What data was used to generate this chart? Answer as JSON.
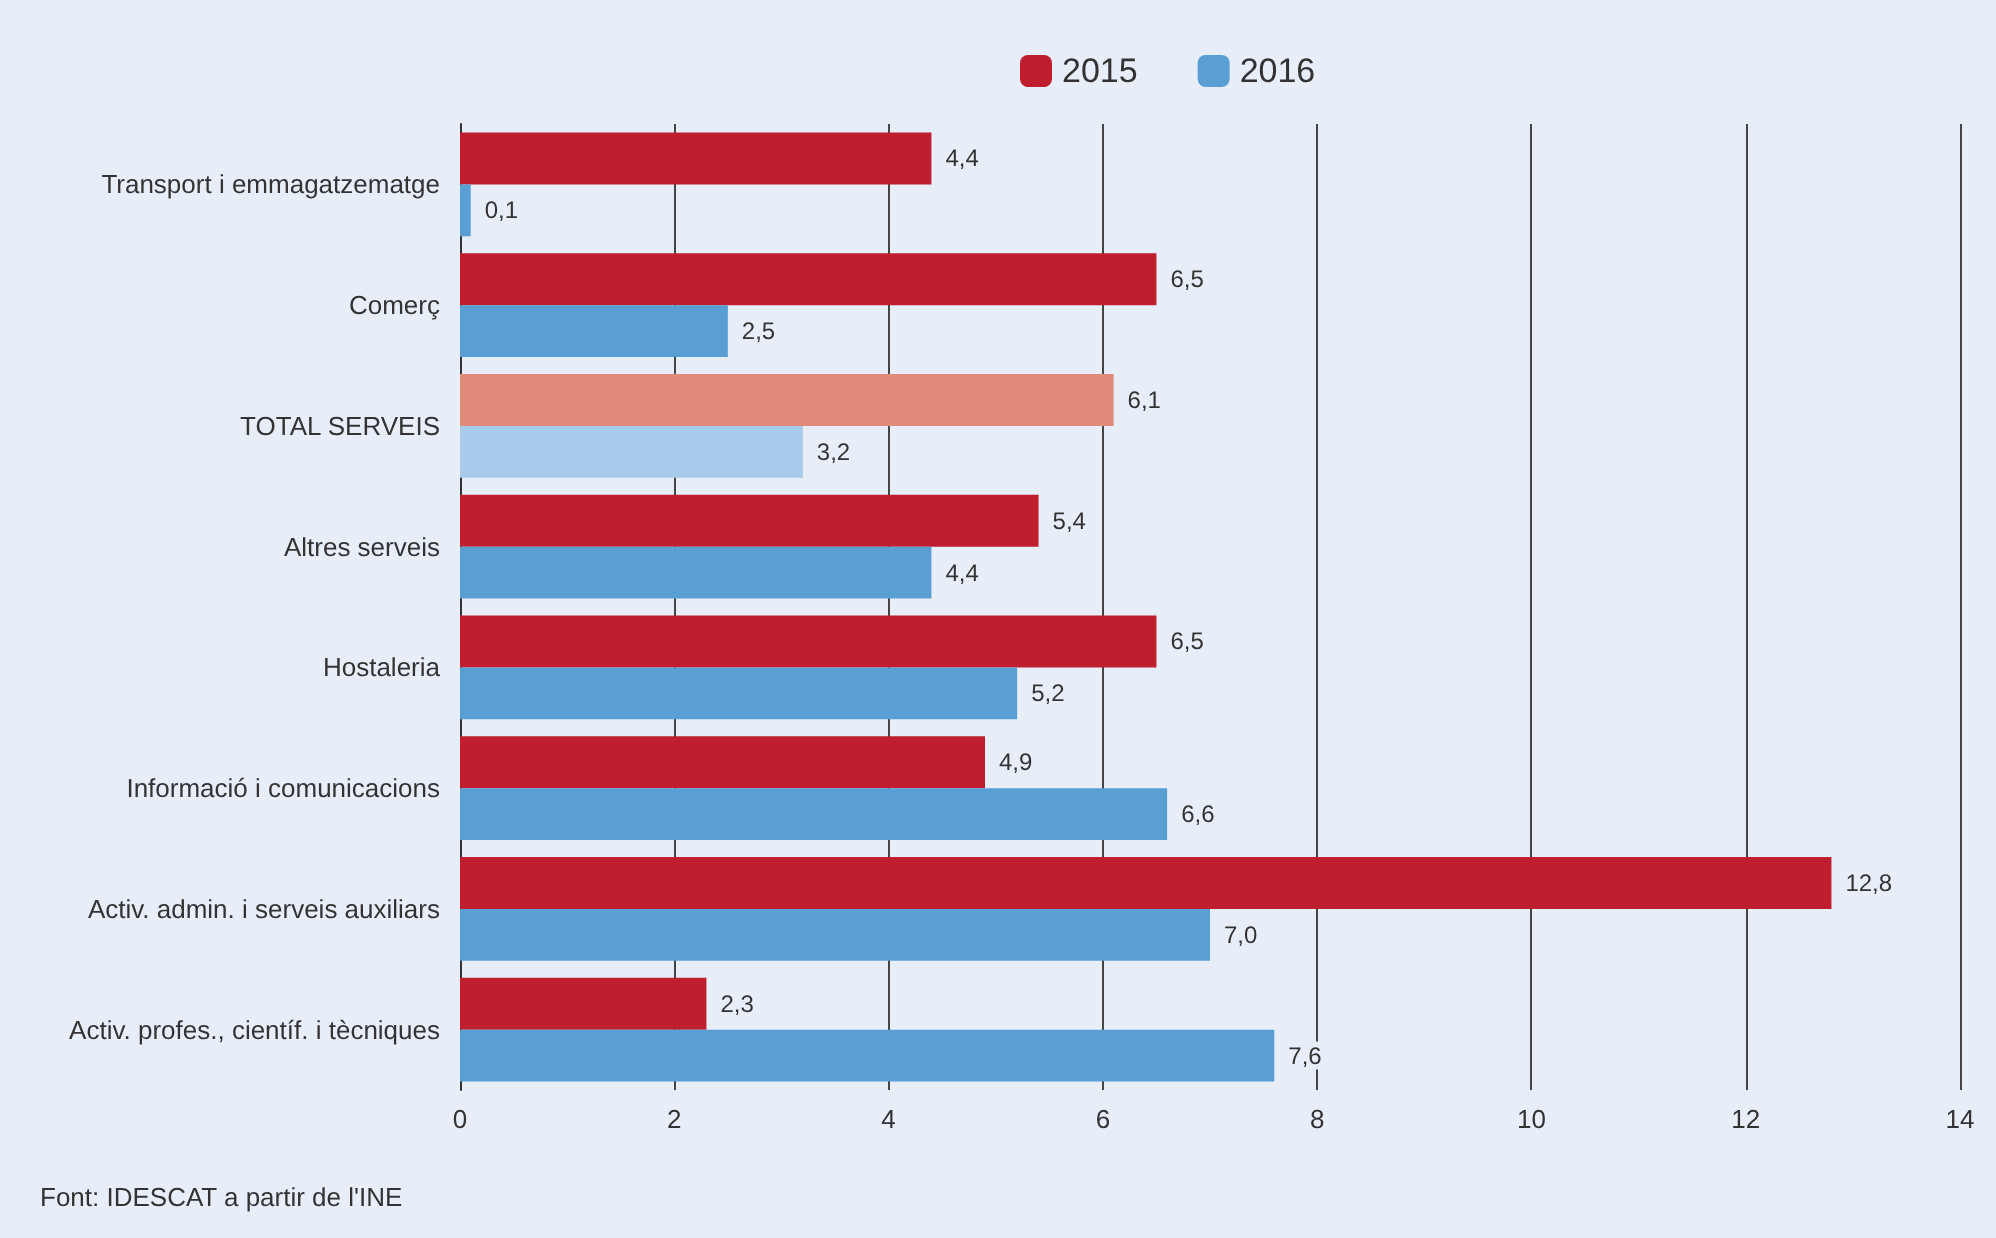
{
  "chart_data": {
    "type": "bar",
    "orientation": "horizontal",
    "categories": [
      "Transport i emmagatzematge",
      "Comerç",
      "TOTAL SERVEIS",
      "Altres serveis",
      "Hostaleria",
      "Informació i comunicacions",
      "Activ. admin. i serveis auxiliars",
      "Activ. profes., científ. i tècniques"
    ],
    "series": [
      {
        "name": "2015",
        "color": "#be1e2d",
        "colors": [
          "#be1e2d",
          "#be1e2d",
          "#e08b7a",
          "#be1e2d",
          "#be1e2d",
          "#be1e2d",
          "#be1e2d",
          "#be1e2d"
        ],
        "values": [
          4.4,
          6.5,
          6.1,
          5.4,
          6.5,
          4.9,
          12.8,
          2.3
        ],
        "value_labels": [
          "4,4",
          "6,5",
          "6,1",
          "5,4",
          "6,5",
          "4,9",
          "12,8",
          "2,3"
        ]
      },
      {
        "name": "2016",
        "color": "#5a9fd4",
        "colors": [
          "#5a9fd4",
          "#5a9fd4",
          "#a9cbeb",
          "#5a9fd4",
          "#5a9fd4",
          "#5a9fd4",
          "#5a9fd4",
          "#5a9fd4"
        ],
        "values": [
          0.1,
          2.5,
          3.2,
          4.4,
          5.2,
          6.6,
          7.0,
          7.6
        ],
        "value_labels": [
          "0,1",
          "2,5",
          "3,2",
          "4,4",
          "5,2",
          "6,6",
          "7,0",
          "7,6"
        ]
      }
    ],
    "xlim": [
      0,
      14
    ],
    "xticks": [
      0,
      2,
      4,
      6,
      8,
      10,
      12,
      14
    ],
    "grid": "x",
    "legend": "top",
    "annotations": [
      "Font: IDESCAT a partir de l'INE"
    ]
  }
}
